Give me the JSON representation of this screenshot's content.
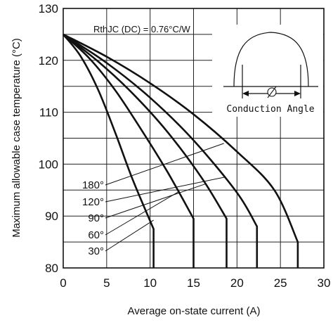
{
  "chart_data": {
    "type": "line",
    "xlabel": "Average on-state current (A)",
    "ylabel": "Maximum allowable case temperature (°C)",
    "xlim": [
      0,
      30
    ],
    "ylim": [
      80,
      130
    ],
    "x_ticks": [
      0,
      5,
      10,
      15,
      20,
      25,
      30
    ],
    "y_ticks": [
      80,
      90,
      100,
      110,
      120,
      130
    ],
    "grid": true,
    "annotation": "RthJC (DC) = 0.76°C/W",
    "inset_label": "Conduction Angle",
    "inset_symbol": "∅",
    "series": [
      {
        "name": "30°",
        "x": [
          0,
          2,
          4,
          6,
          8,
          10.4,
          10.4
        ],
        "y": [
          125,
          120.8,
          114.4,
          106,
          97,
          87.5,
          80
        ]
      },
      {
        "name": "60°",
        "x": [
          0,
          3,
          6,
          9,
          12,
          15,
          15
        ],
        "y": [
          125,
          120.4,
          114.2,
          106.6,
          98.5,
          89.5,
          80
        ]
      },
      {
        "name": "90°",
        "x": [
          0,
          4,
          8,
          12,
          16,
          18.8,
          18.8
        ],
        "y": [
          125,
          119.8,
          113.6,
          106.2,
          97.2,
          89.5,
          80
        ]
      },
      {
        "name": "120°",
        "x": [
          0,
          5,
          10,
          15,
          20,
          22.3,
          22.3
        ],
        "y": [
          125,
          119.5,
          112.8,
          104.6,
          94.5,
          88,
          80
        ]
      },
      {
        "name": "180°",
        "x": [
          0,
          5,
          10,
          15,
          20,
          24.3,
          27,
          27
        ],
        "y": [
          125,
          120.7,
          115.6,
          109.6,
          102.4,
          95,
          85,
          80
        ]
      }
    ]
  }
}
